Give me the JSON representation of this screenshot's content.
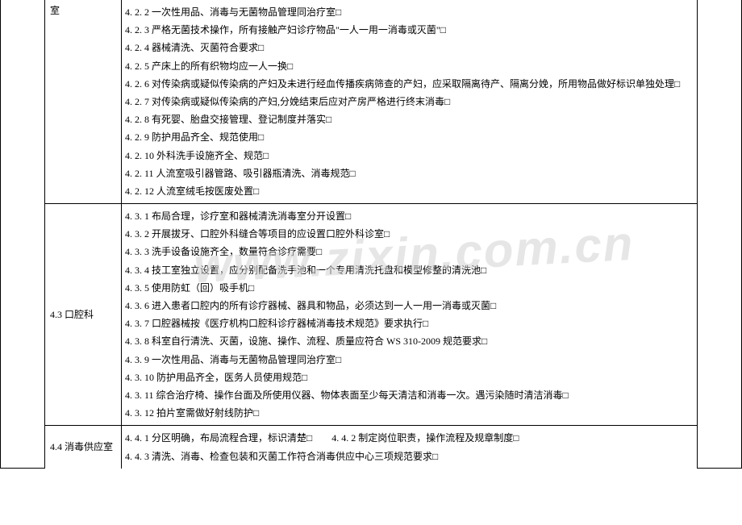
{
  "watermark": "www.zixin.com.cn",
  "sections": {
    "s42": {
      "label_remainder": "室",
      "items": [
        "4. 2. 2 一次性用品、消毒与无菌物品管理同治疗室□",
        "4. 2. 3 严格无菌技术操作，所有接触产妇诊疗物品\"一人一用一消毒或灭菌\"□",
        "4. 2. 4 器械清洗、灭菌符合要求□",
        "4. 2. 5 产床上的所有织物均应一人一换□",
        "4. 2. 6 对传染病或疑似传染病的产妇及未进行经血传播疾病筛查的产妇，应采取隔离待产、隔离分娩，所用物品做好标识单独处理□",
        "4. 2. 7 对传染病或疑似传染病的产妇,分娩结束后应对产房严格进行终末消毒□",
        "4. 2. 8 有死婴、胎盘交接管理、登记制度并落实□",
        "4. 2. 9 防护用品齐全、规范使用□",
        "4. 2. 10 外科洗手设施齐全、规范□",
        "4. 2. 11 人流室吸引器管路、吸引器瓶清洗、消毒规范□",
        "4. 2. 12 人流室绒毛按医废处置□"
      ]
    },
    "s43": {
      "label": "4.3 口腔科",
      "items": [
        "4. 3. 1 布局合理，诊疗室和器械清洗消毒室分开设置□",
        "4. 3. 2 开展拔牙、口腔外科缝合等项目的应设置口腔外科诊室□",
        "4. 3. 3 洗手设备设施齐全，数量符合诊疗需要□",
        "4. 3. 4 技工室独立设置，应分别配备洗手池和一个专用清洗托盘和模型修整的清洗池□",
        "4. 3. 5 使用防虹（回）吸手机□",
        "4. 3. 6 进入患者口腔内的所有诊疗器械、器具和物品，必须达到一人一用一消毒或灭菌□",
        "4. 3. 7 口腔器械按《医疗机构口腔科诊疗器械消毒技术规范》要求执行□",
        "4. 3. 8 科室自行清洗、灭菌，设施、操作、流程、质量应符合 WS 310-2009 规范要求□",
        "4. 3. 9 一次性用品、消毒与无菌物品管理同治疗室□",
        "4. 3. 10 防护用品齐全，医务人员使用规范□",
        "4. 3. 11 综合治疗椅、操作台面及所使用仪器、物体表面至少每天清洁和消毒一次。遇污染随时清洁消毒□",
        "4. 3. 12 拍片室需做好射线防护□"
      ]
    },
    "s44": {
      "label": "4.4 消毒供应室",
      "items": [
        "4. 4. 1 分区明确，布局流程合理，标识清楚□　　4. 4. 2 制定岗位职责，操作流程及规章制度□",
        "4. 4. 3 清洗、消毒、检查包装和灭菌工作符合消毒供应中心三项规范要求□"
      ]
    }
  }
}
